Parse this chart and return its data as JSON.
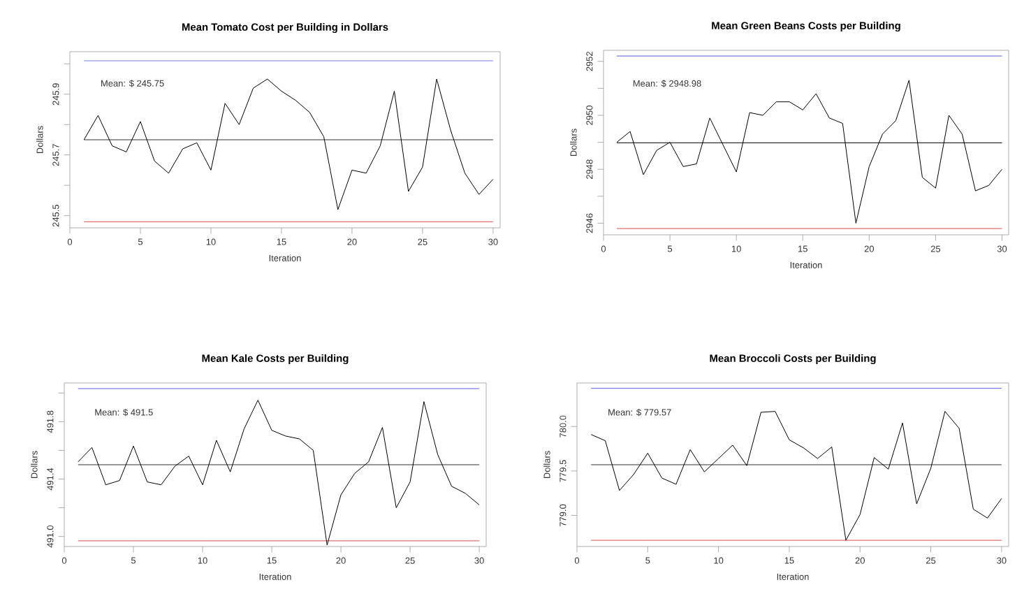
{
  "chart_data": [
    {
      "type": "line",
      "title": "Mean Tomato Cost per Building in Dollars",
      "xlabel": "Iteration",
      "ylabel": "Dollars",
      "x": [
        1,
        2,
        3,
        4,
        5,
        6,
        7,
        8,
        9,
        10,
        11,
        12,
        13,
        14,
        15,
        16,
        17,
        18,
        19,
        20,
        21,
        22,
        23,
        24,
        25,
        26,
        27,
        28,
        29,
        30
      ],
      "series": [
        {
          "color": "#000000",
          "values": [
            245.75,
            245.83,
            245.73,
            245.71,
            245.81,
            245.68,
            245.64,
            245.72,
            245.74,
            245.65,
            245.87,
            245.8,
            245.92,
            245.95,
            245.91,
            245.88,
            245.84,
            245.76,
            245.52,
            245.65,
            245.64,
            245.73,
            245.91,
            245.58,
            245.66,
            245.95,
            245.78,
            245.64,
            245.57,
            245.62
          ]
        }
      ],
      "xlim": [
        0,
        30.5
      ],
      "ylim": [
        245.46,
        246.04
      ],
      "xticks": [
        0,
        5,
        10,
        15,
        20,
        25,
        30
      ],
      "yticks": [
        245.5,
        {
          "value": 245.6,
          "label": null
        },
        245.7,
        {
          "value": 245.8,
          "label": null
        },
        245.9,
        {
          "value": 246.0,
          "label": null
        }
      ],
      "ref_lines": [
        {
          "axis": "y",
          "value": 246.01,
          "color": "#7b7bf0"
        },
        {
          "axis": "y",
          "value": 245.75,
          "label": "Mean: $ 245.75",
          "color": "#333333"
        },
        {
          "axis": "y",
          "value": 245.48,
          "color": "#e07070"
        }
      ]
    },
    {
      "type": "line",
      "title": "Mean Green Beans Costs per Building",
      "xlabel": "Iteration",
      "ylabel": "Dollars",
      "x": [
        1,
        2,
        3,
        4,
        5,
        6,
        7,
        8,
        9,
        10,
        11,
        12,
        13,
        14,
        15,
        16,
        17,
        18,
        19,
        20,
        21,
        22,
        23,
        24,
        25,
        26,
        27,
        28,
        29,
        30
      ],
      "series": [
        {
          "color": "#000000",
          "values": [
            2949.0,
            2949.4,
            2947.8,
            2948.7,
            2949.0,
            2948.1,
            2948.2,
            2949.9,
            2948.9,
            2947.9,
            2950.1,
            2950.0,
            2950.5,
            2950.5,
            2950.2,
            2950.8,
            2949.9,
            2949.7,
            2946.0,
            2948.1,
            2949.3,
            2949.8,
            2951.3,
            2947.7,
            2947.3,
            2950.0,
            2949.3,
            2947.2,
            2947.4,
            2948.0
          ]
        }
      ],
      "xlim": [
        0,
        30.5
      ],
      "ylim": [
        2945.57,
        2952.41
      ],
      "xticks": [
        0,
        5,
        10,
        15,
        20,
        25,
        30
      ],
      "yticks": [
        2946,
        {
          "value": 2947,
          "label": null
        },
        2948,
        {
          "value": 2949,
          "label": null
        },
        2950,
        {
          "value": 2951,
          "label": null
        },
        2952
      ],
      "ref_lines": [
        {
          "axis": "y",
          "value": 2952.2,
          "color": "#7b7bf0"
        },
        {
          "axis": "y",
          "value": 2948.98,
          "label": "Mean: $ 2948.98",
          "color": "#333333"
        },
        {
          "axis": "y",
          "value": 2945.8,
          "color": "#e07070"
        }
      ]
    },
    {
      "type": "line",
      "title": "Mean Kale Costs per Building",
      "xlabel": "Iteration",
      "ylabel": "Dollars",
      "x": [
        1,
        2,
        3,
        4,
        5,
        6,
        7,
        8,
        9,
        10,
        11,
        12,
        13,
        14,
        15,
        16,
        17,
        18,
        19,
        20,
        21,
        22,
        23,
        24,
        25,
        26,
        27,
        28,
        29,
        30
      ],
      "series": [
        {
          "color": "#000000",
          "values": [
            491.52,
            491.62,
            491.36,
            491.39,
            491.63,
            491.38,
            491.36,
            491.49,
            491.56,
            491.36,
            491.67,
            491.45,
            491.75,
            491.95,
            491.74,
            491.7,
            491.68,
            491.6,
            490.94,
            491.29,
            491.44,
            491.52,
            491.76,
            491.2,
            491.38,
            491.94,
            491.57,
            491.35,
            491.3,
            491.22
          ]
        }
      ],
      "xlim": [
        0,
        30.5
      ],
      "ylim": [
        490.93,
        492.07
      ],
      "xticks": [
        0,
        5,
        10,
        15,
        20,
        25,
        30
      ],
      "yticks": [
        {
          "value": 491.0,
          "label": "491.0"
        },
        {
          "value": 491.2,
          "label": null
        },
        491.4,
        {
          "value": 491.6,
          "label": null
        },
        491.8,
        {
          "value": 492.0,
          "label": null
        }
      ],
      "ref_lines": [
        {
          "axis": "y",
          "value": 492.03,
          "color": "#7b7bf0"
        },
        {
          "axis": "y",
          "value": 491.5,
          "label": "Mean: $ 491.5",
          "color": "#333333"
        },
        {
          "axis": "y",
          "value": 490.97,
          "color": "#e07070"
        }
      ]
    },
    {
      "type": "line",
      "title": "Mean Broccoli Costs per Building",
      "xlabel": "Iteration",
      "ylabel": "Dollars",
      "x": [
        1,
        2,
        3,
        4,
        5,
        6,
        7,
        8,
        9,
        10,
        11,
        12,
        13,
        14,
        15,
        16,
        17,
        18,
        19,
        20,
        21,
        22,
        23,
        24,
        25,
        26,
        27,
        28,
        29,
        30
      ],
      "series": [
        {
          "color": "#000000",
          "values": [
            779.91,
            779.84,
            779.28,
            779.46,
            779.7,
            779.42,
            779.35,
            779.74,
            779.49,
            779.64,
            779.79,
            779.56,
            780.16,
            780.17,
            779.85,
            779.76,
            779.64,
            779.77,
            778.72,
            779.01,
            779.65,
            779.52,
            780.04,
            779.13,
            779.53,
            780.17,
            779.98,
            779.07,
            778.97,
            779.19
          ]
        }
      ],
      "xlim": [
        0,
        30.5
      ],
      "ylim": [
        778.65,
        780.49
      ],
      "xticks": [
        0,
        5,
        10,
        15,
        20,
        25,
        30
      ],
      "yticks": [
        {
          "value": 779.0,
          "label": "779.0"
        },
        {
          "value": 779.5,
          "label": "779.5"
        },
        {
          "value": 780.0,
          "label": "780.0"
        }
      ],
      "ref_lines": [
        {
          "axis": "y",
          "value": 780.43,
          "color": "#7b7bf0"
        },
        {
          "axis": "y",
          "value": 779.57,
          "label": "Mean: $ 779.57",
          "color": "#333333"
        },
        {
          "axis": "y",
          "value": 778.72,
          "color": "#e07070"
        }
      ]
    }
  ]
}
